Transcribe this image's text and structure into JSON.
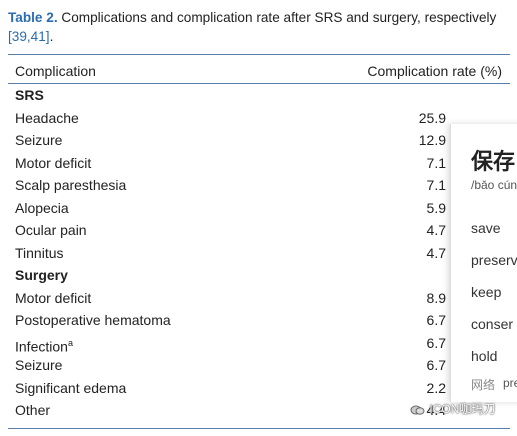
{
  "caption": {
    "label": "Table 2.",
    "text": "Complications and complication rate after SRS and surgery, respectively",
    "refs": "[39,41]",
    "end": "."
  },
  "table": {
    "header": [
      "Complication",
      "Complication rate (%)"
    ],
    "groups": [
      {
        "name": "SRS",
        "rows": [
          {
            "label": "Headache",
            "value": 25.9
          },
          {
            "label": "Seizure",
            "value": 12.9
          },
          {
            "label": "Motor deficit",
            "value": 7.1
          },
          {
            "label": "Scalp paresthesia",
            "value": 7.1
          },
          {
            "label": "Alopecia",
            "value": 5.9
          },
          {
            "label": "Ocular pain",
            "value": 4.7
          },
          {
            "label": "Tinnitus",
            "value": 4.7
          }
        ]
      },
      {
        "name": "Surgery",
        "rows": [
          {
            "label": "Motor deficit",
            "value": 8.9
          },
          {
            "label": "Postoperative hematoma",
            "value": 6.7
          },
          {
            "label": "Infection",
            "note": "a",
            "value": 6.7
          },
          {
            "label": "Seizure",
            "value": 6.7
          },
          {
            "label": "Significant edema",
            "value": 2.2
          },
          {
            "label": "Other",
            "value": 4.4
          }
        ]
      }
    ]
  },
  "popup": {
    "headword": "保存",
    "pinyin": "/bǎo cún",
    "senses": [
      "save",
      "preserv",
      "keep",
      "conser",
      "hold"
    ],
    "web_label": "网络",
    "web_text": "pre"
  },
  "watermark": "ICON咖玛刀"
}
